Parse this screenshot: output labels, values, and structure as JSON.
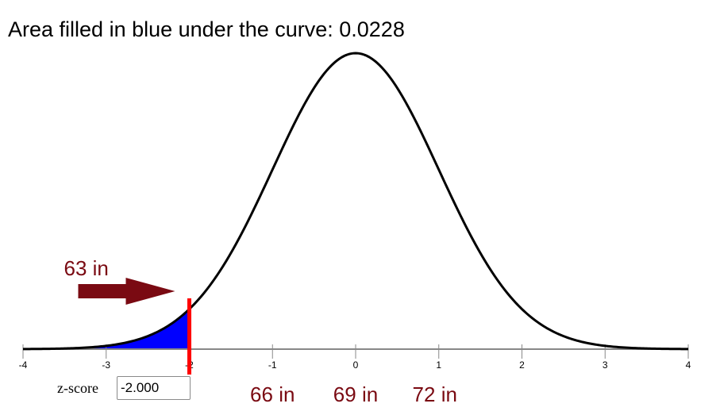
{
  "header": {
    "title": "Area filled in blue under the curve: 0.0228"
  },
  "zscore": {
    "label": "z-score",
    "value": "-2.000"
  },
  "marker_label": "63 in",
  "inch_labels": [
    "66 in",
    "69 in",
    "72 in"
  ],
  "colors": {
    "fill": "#0000ff",
    "marker": "#ff0000",
    "arrow": "#7a0a12",
    "inch_text": "#7a0a12",
    "axis": "#888888"
  },
  "chart_data": {
    "type": "area",
    "title": "Area filled in blue under the curve: 0.0228",
    "x_range": [
      -4,
      4
    ],
    "tick_labels": [
      "-4",
      "-3",
      "-2",
      "-1",
      "0",
      "1",
      "2",
      "3",
      "4"
    ],
    "tick_values": [
      -4,
      -3,
      -2,
      -1,
      0,
      1,
      2,
      3,
      4
    ],
    "distribution": "standard normal",
    "shaded_region": {
      "from": -4,
      "to": -2
    },
    "z_score": -2,
    "area": 0.0228,
    "inch_ticks": [
      {
        "z": -2,
        "label": "63 in"
      },
      {
        "z": -1,
        "label": "66 in"
      },
      {
        "z": 0,
        "label": "69 in"
      },
      {
        "z": 1,
        "label": "72 in"
      }
    ]
  }
}
